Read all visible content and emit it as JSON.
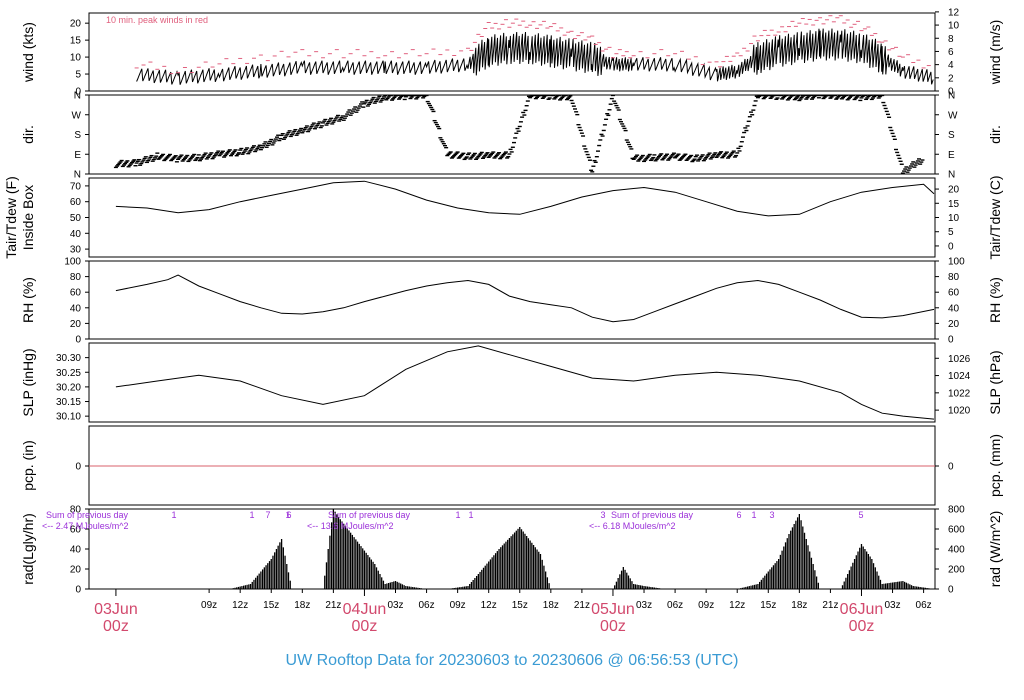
{
  "title": "UW Rooftop Data for 20230603  to  20230606 @ 06:56:53  (UTC)",
  "colors": {
    "title": "#3a9bd4",
    "date": "#d2496d",
    "peak": "#e0607e",
    "annot": "#9b30d9",
    "pcp_line": "#d9606b"
  },
  "x_axis": {
    "hour_ticks": [
      "09z",
      "12z",
      "15z",
      "18z",
      "21z",
      "03z",
      "06z",
      "09z",
      "12z",
      "15z",
      "18z",
      "21z",
      "03z",
      "06z",
      "09z",
      "12z",
      "15z",
      "18z",
      "21z",
      "03z",
      "06z"
    ],
    "hour_tick_hours": [
      9,
      12,
      15,
      18,
      21,
      27,
      30,
      33,
      36,
      39,
      42,
      45,
      51,
      54,
      57,
      60,
      63,
      66,
      69,
      75,
      78
    ],
    "day_labels": [
      {
        "date": "03Jun",
        "time": "00z",
        "hour": 0
      },
      {
        "date": "04Jun",
        "time": "00z",
        "hour": 24
      },
      {
        "date": "05Jun",
        "time": "00z",
        "hour": 48
      },
      {
        "date": "06Jun",
        "time": "00z",
        "hour": 72
      }
    ]
  },
  "chart_data": [
    {
      "type": "line",
      "name": "wind",
      "ylabel": "wind (kts)",
      "ylabel_right": "wind (m/s)",
      "yticks": [
        0,
        5,
        10,
        15,
        20
      ],
      "yticks_right": [
        0,
        2,
        4,
        6,
        8,
        10,
        12
      ],
      "ylim": [
        0,
        23
      ],
      "annotation": "10 min. peak winds in red",
      "x": [
        2,
        6,
        10,
        14,
        18,
        22,
        26,
        30,
        34,
        36,
        38,
        40,
        42,
        44,
        46,
        48,
        50,
        54,
        58,
        60,
        62,
        64,
        66,
        68,
        70,
        72,
        74,
        76,
        79
      ],
      "y": [
        5,
        4,
        5,
        6,
        7,
        7,
        7,
        7,
        8,
        12,
        13,
        13,
        12,
        11,
        10,
        8,
        8,
        8,
        5,
        6,
        10,
        12,
        13,
        14,
        14,
        13,
        10,
        6,
        4
      ],
      "peak_y": [
        8,
        6,
        8,
        10,
        11,
        11,
        11,
        11,
        12,
        19,
        20,
        20,
        19,
        17,
        15,
        11,
        11,
        11,
        8,
        10,
        16,
        18,
        20,
        21,
        21,
        19,
        15,
        10,
        7
      ]
    },
    {
      "type": "scatter",
      "name": "dir",
      "ylabel": "dir.",
      "yticks": [
        "N",
        "E",
        "S",
        "W",
        "N"
      ],
      "x": [
        0,
        2,
        4,
        6,
        8,
        10,
        12,
        14,
        16,
        18,
        20,
        22,
        24,
        26,
        28,
        30,
        32,
        34,
        36,
        38,
        40,
        42,
        44,
        46,
        48,
        50,
        52,
        54,
        56,
        58,
        60,
        62,
        64,
        66,
        68,
        70,
        72,
        74,
        76,
        78
      ],
      "y": [
        45,
        50,
        80,
        70,
        75,
        90,
        100,
        120,
        170,
        200,
        230,
        260,
        320,
        350,
        355,
        360,
        90,
        80,
        85,
        85,
        360,
        355,
        350,
        10,
        360,
        70,
        75,
        80,
        70,
        85,
        90,
        360,
        355,
        350,
        360,
        355,
        350,
        360,
        10,
        70
      ]
    },
    {
      "type": "line",
      "name": "temp",
      "ylabel": "Tair/Tdew (F)",
      "ylabel2": "Inside Box",
      "ylabel_right": "Tair/Tdew (C)",
      "yticks": [
        30,
        40,
        50,
        60,
        70
      ],
      "yticks_right": [
        0,
        5,
        10,
        15,
        20
      ],
      "ylim": [
        25,
        75
      ],
      "x": [
        0,
        3,
        6,
        9,
        12,
        15,
        18,
        21,
        24,
        27,
        30,
        33,
        36,
        39,
        42,
        45,
        48,
        51,
        54,
        57,
        60,
        63,
        66,
        69,
        72,
        75,
        78,
        79
      ],
      "y": [
        57,
        56,
        53,
        55,
        60,
        64,
        68,
        72,
        73,
        68,
        61,
        56,
        53,
        52,
        57,
        63,
        67,
        69,
        66,
        60,
        54,
        51,
        52,
        60,
        66,
        69,
        71,
        65
      ]
    },
    {
      "type": "line",
      "name": "rh",
      "ylabel": "RH (%)",
      "ylabel_right": "RH (%)",
      "yticks": [
        0,
        20,
        40,
        60,
        80,
        100
      ],
      "ylim": [
        0,
        100
      ],
      "x": [
        0,
        3,
        5,
        6,
        8,
        10,
        12,
        14,
        16,
        18,
        20,
        22,
        24,
        26,
        28,
        30,
        32,
        34,
        36,
        38,
        40,
        42,
        44,
        46,
        48,
        50,
        52,
        54,
        56,
        58,
        60,
        62,
        64,
        66,
        68,
        70,
        72,
        74,
        76,
        79
      ],
      "y": [
        62,
        70,
        76,
        82,
        68,
        58,
        48,
        40,
        33,
        32,
        35,
        40,
        48,
        55,
        62,
        68,
        72,
        75,
        70,
        55,
        48,
        44,
        40,
        28,
        22,
        25,
        35,
        45,
        55,
        65,
        72,
        75,
        70,
        60,
        50,
        38,
        28,
        27,
        30,
        38
      ]
    },
    {
      "type": "line",
      "name": "slp",
      "ylabel": "SLP (inHg)",
      "ylabel_right": "SLP (hPa)",
      "yticks": [
        30.1,
        30.15,
        30.2,
        30.25,
        30.3
      ],
      "yticks_right": [
        1020,
        1022,
        1024,
        1026
      ],
      "ylim": [
        30.08,
        30.35
      ],
      "x": [
        0,
        4,
        8,
        12,
        16,
        20,
        24,
        28,
        32,
        35,
        38,
        42,
        46,
        50,
        54,
        58,
        62,
        66,
        70,
        72,
        74,
        76,
        79
      ],
      "y": [
        30.2,
        30.22,
        30.24,
        30.22,
        30.17,
        30.14,
        30.17,
        30.26,
        30.32,
        30.34,
        30.31,
        30.27,
        30.23,
        30.22,
        30.24,
        30.25,
        30.24,
        30.22,
        30.18,
        30.14,
        30.11,
        30.1,
        30.09
      ]
    },
    {
      "type": "line",
      "name": "pcp",
      "ylabel": "pcp. (in)",
      "ylabel_right": "pcp. (mm)",
      "yticks": [
        0
      ],
      "yticks_right": [
        0
      ],
      "x": [
        0,
        79
      ],
      "y": [
        0,
        0
      ]
    },
    {
      "type": "area",
      "name": "rad",
      "ylabel": "rad(Lgly/hr)",
      "ylabel_right": "rad (W/m^2)",
      "yticks": [
        0,
        20,
        40,
        60,
        80
      ],
      "yticks_right": [
        0,
        200,
        400,
        600,
        800
      ],
      "ylim": [
        0,
        80
      ],
      "x": [
        0,
        11,
        13,
        15,
        16,
        17,
        18,
        20,
        21,
        21.5,
        25,
        26,
        27,
        28,
        30,
        32,
        34,
        35,
        37,
        39,
        41,
        42,
        44,
        48,
        49,
        50,
        51,
        53,
        56,
        58,
        60,
        62,
        64,
        65,
        66,
        68,
        70,
        72,
        73,
        74,
        76,
        77,
        79
      ],
      "y": [
        0,
        0,
        5,
        30,
        50,
        0,
        0,
        0,
        80,
        72,
        25,
        5,
        8,
        3,
        0,
        0,
        3,
        15,
        40,
        62,
        35,
        0,
        0,
        0,
        22,
        5,
        3,
        0,
        0,
        0,
        0,
        5,
        30,
        55,
        75,
        0,
        0,
        45,
        30,
        5,
        8,
        3,
        0
      ],
      "annotations": [
        {
          "line1": "Sum of previous day",
          "line2": "<-- 2.47 MJoules/m^2"
        },
        {
          "line1": "Sum of previous day",
          "line2": "<-- 13.6 MJoules/m^2"
        },
        {
          "line1": "Sum of previous day",
          "line2": "<-- 6.18 MJoules/m^2"
        }
      ],
      "top_marks": [
        "1",
        "1",
        "7",
        "1",
        "1",
        "1",
        "3",
        "6",
        "1",
        "3",
        "5",
        "6"
      ]
    }
  ]
}
